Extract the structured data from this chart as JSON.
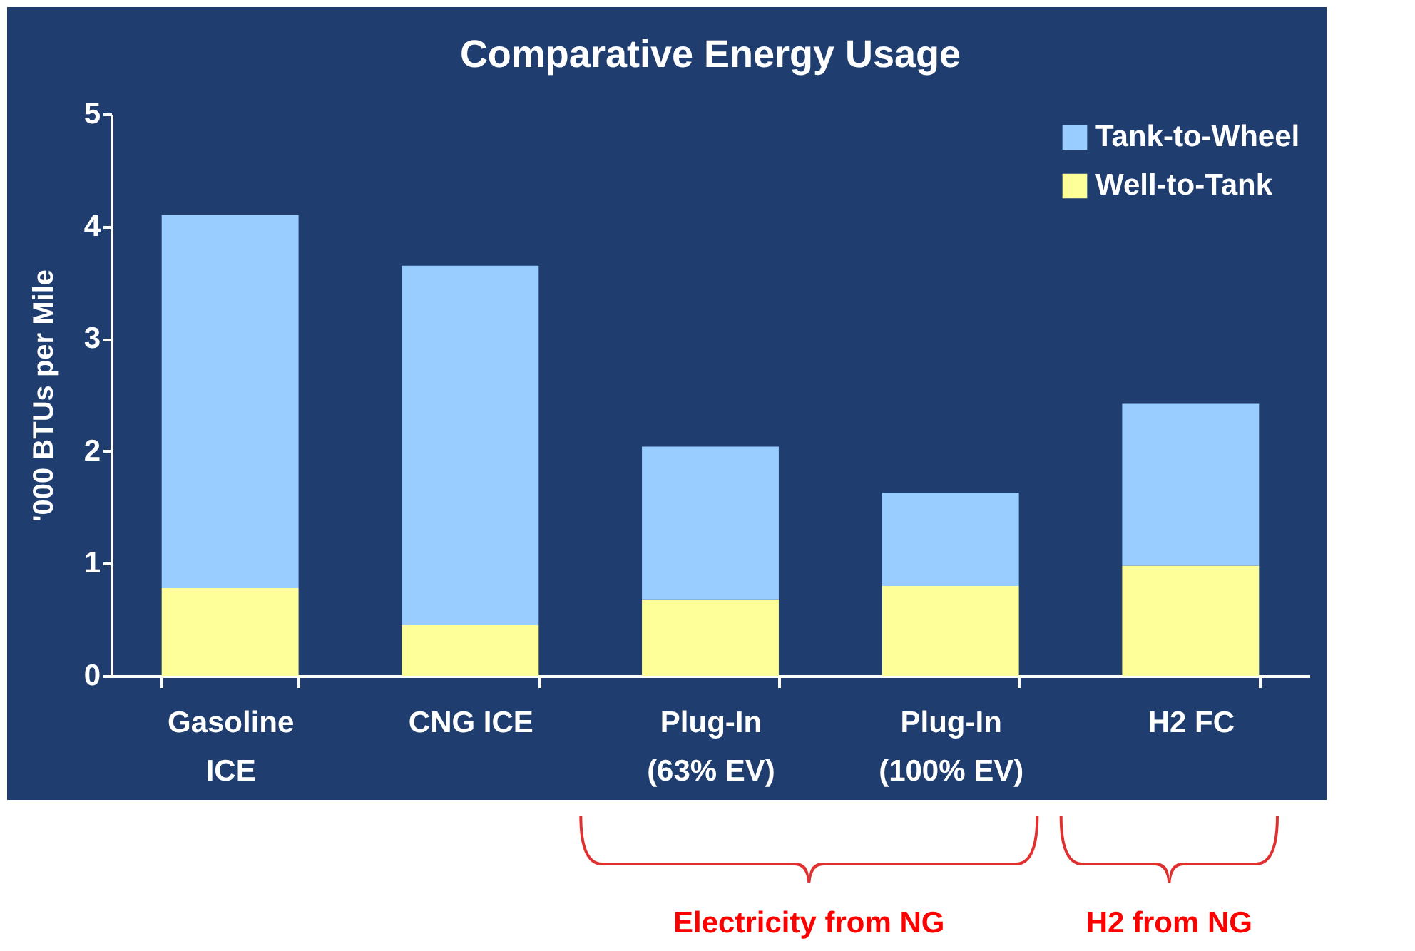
{
  "chart_data": {
    "type": "bar",
    "title": "Comparative Energy Usage",
    "ylabel": "'000 BTUs per Mile",
    "categories": [
      "Gasoline\nICE",
      "CNG ICE",
      "Plug-In\n(63% EV)",
      "Plug-In\n(100% EV)",
      "H2 FC"
    ],
    "stacked": true,
    "series": [
      {
        "name": "Well-to-Tank",
        "color": "#ffff99",
        "values": [
          0.78,
          0.45,
          0.68,
          0.8,
          0.98
        ]
      },
      {
        "name": "Tank-to-Wheel",
        "color": "#99ccff",
        "values": [
          3.32,
          3.2,
          1.36,
          0.83,
          1.44
        ]
      }
    ],
    "ylim": [
      0,
      5
    ],
    "yticks": [
      0,
      1,
      2,
      3,
      4,
      5
    ],
    "grid": false,
    "legend": "top right",
    "annotations": [
      "Electricity from NG",
      "H2 from NG"
    ]
  }
}
